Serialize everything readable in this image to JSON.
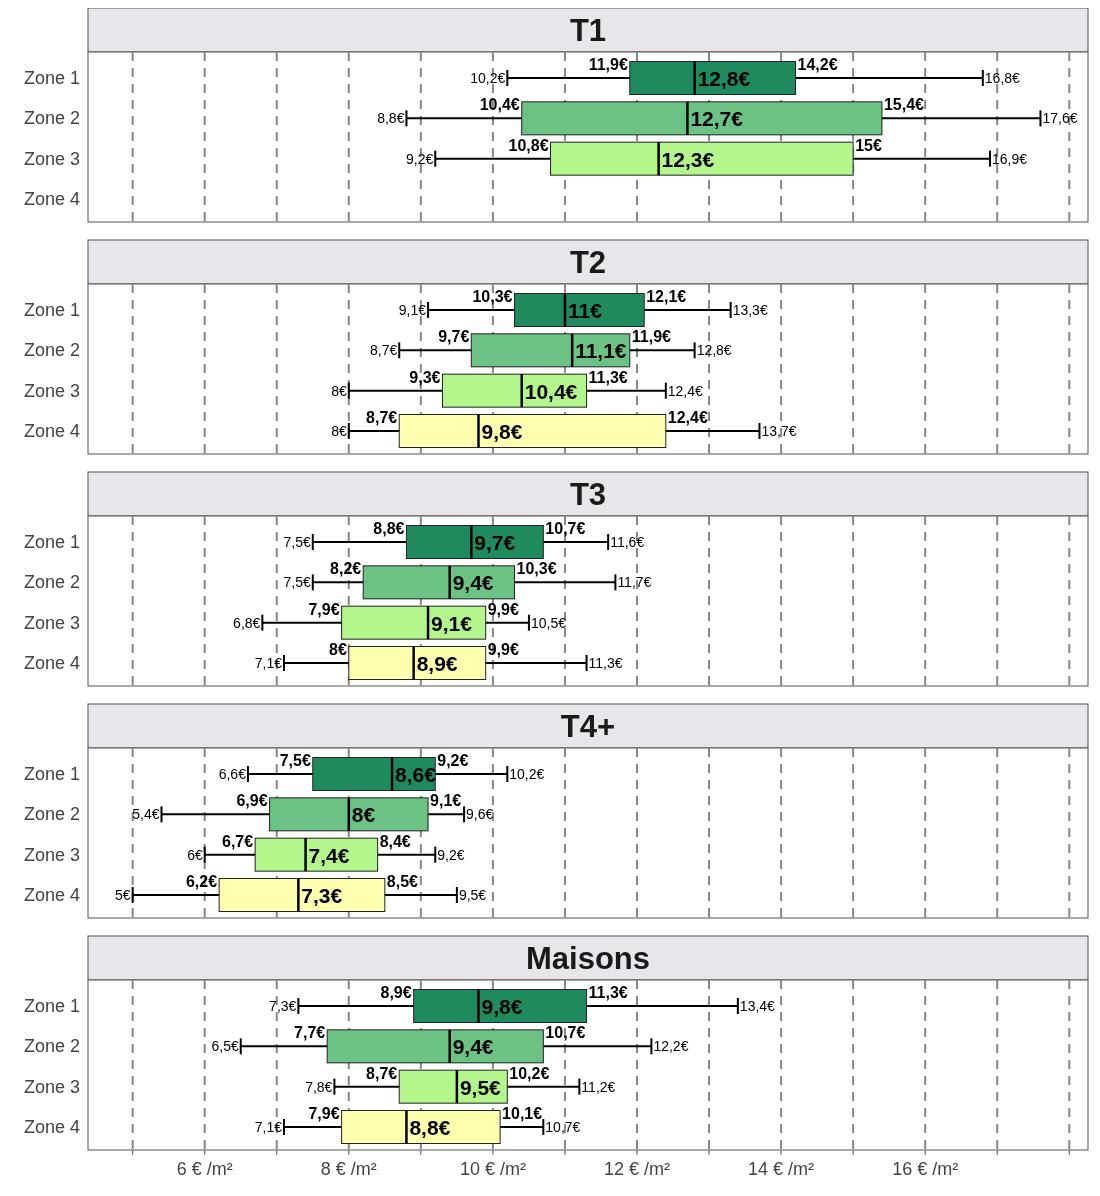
{
  "chart_data": [
    {
      "type": "box",
      "title": "T1",
      "orientation": "horizontal",
      "categories": [
        "Zone 1",
        "Zone 2",
        "Zone 3",
        "Zone 4"
      ],
      "colors": [
        "#1e8a5e",
        "#6cc184",
        "#b4f68c",
        null
      ],
      "boxes": [
        {
          "low": 10.2,
          "q1": 11.9,
          "median": 12.8,
          "q3": 14.2,
          "high": 16.8
        },
        {
          "low": 8.8,
          "q1": 10.4,
          "median": 12.7,
          "q3": 15.4,
          "high": 17.6
        },
        {
          "low": 9.2,
          "q1": 10.8,
          "median": 12.3,
          "q3": 15,
          "high": 16.9
        },
        null
      ],
      "value_labels": [
        [
          "10,2€",
          "11,9€",
          "12,8€",
          "14,2€",
          "16,8€"
        ],
        [
          "8,8€",
          "10,4€",
          "12,7€",
          "15,4€",
          "17,6€"
        ],
        [
          "9,2€",
          "10,8€",
          "12,3€",
          "15€",
          "16,9€"
        ],
        null
      ],
      "xlim": [
        4.38,
        18.26
      ],
      "xticks": [
        5,
        6,
        7,
        8,
        9,
        10,
        11,
        12,
        13,
        14,
        15,
        16,
        17,
        18
      ],
      "grid": "x",
      "tick_labels": "y"
    },
    {
      "type": "box",
      "title": "T2",
      "orientation": "horizontal",
      "categories": [
        "Zone 1",
        "Zone 2",
        "Zone 3",
        "Zone 4"
      ],
      "colors": [
        "#1e8a5e",
        "#6cc184",
        "#b4f68c",
        "#ffffb0"
      ],
      "boxes": [
        {
          "low": 9.1,
          "q1": 10.3,
          "median": 11,
          "q3": 12.1,
          "high": 13.3
        },
        {
          "low": 8.7,
          "q1": 9.7,
          "median": 11.1,
          "q3": 11.9,
          "high": 12.8
        },
        {
          "low": 8,
          "q1": 9.3,
          "median": 10.4,
          "q3": 11.3,
          "high": 12.4
        },
        {
          "low": 8,
          "q1": 8.7,
          "median": 9.8,
          "q3": 12.4,
          "high": 13.7
        }
      ],
      "value_labels": [
        [
          "9,1€",
          "10,3€",
          "11€",
          "12,1€",
          "13,3€"
        ],
        [
          "8,7€",
          "9,7€",
          "11,1€",
          "11,9€",
          "12,8€"
        ],
        [
          "8€",
          "9,3€",
          "10,4€",
          "11,3€",
          "12,4€"
        ],
        [
          "8€",
          "8,7€",
          "9,8€",
          "12,4€",
          "13,7€"
        ]
      ],
      "xlim": [
        4.38,
        18.26
      ],
      "xticks": [
        5,
        6,
        7,
        8,
        9,
        10,
        11,
        12,
        13,
        14,
        15,
        16,
        17,
        18
      ],
      "grid": "x",
      "tick_labels": "y"
    },
    {
      "type": "box",
      "title": "T3",
      "orientation": "horizontal",
      "categories": [
        "Zone 1",
        "Zone 2",
        "Zone 3",
        "Zone 4"
      ],
      "colors": [
        "#1e8a5e",
        "#6cc184",
        "#b4f68c",
        "#ffffb0"
      ],
      "boxes": [
        {
          "low": 7.5,
          "q1": 8.8,
          "median": 9.7,
          "q3": 10.7,
          "high": 11.6
        },
        {
          "low": 7.5,
          "q1": 8.2,
          "median": 9.4,
          "q3": 10.3,
          "high": 11.7
        },
        {
          "low": 6.8,
          "q1": 7.9,
          "median": 9.1,
          "q3": 9.9,
          "high": 10.5
        },
        {
          "low": 7.1,
          "q1": 8,
          "median": 8.9,
          "q3": 9.9,
          "high": 11.3
        }
      ],
      "value_labels": [
        [
          "7,5€",
          "8,8€",
          "9,7€",
          "10,7€",
          "11,6€"
        ],
        [
          "7,5€",
          "8,2€",
          "9,4€",
          "10,3€",
          "11,7€"
        ],
        [
          "6,8€",
          "7,9€",
          "9,1€",
          "9,9€",
          "10,5€"
        ],
        [
          "7,1€",
          "8€",
          "8,9€",
          "9,9€",
          "11,3€"
        ]
      ],
      "xlim": [
        4.38,
        18.26
      ],
      "xticks": [
        5,
        6,
        7,
        8,
        9,
        10,
        11,
        12,
        13,
        14,
        15,
        16,
        17,
        18
      ],
      "grid": "x",
      "tick_labels": "y"
    },
    {
      "type": "box",
      "title": "T4+",
      "orientation": "horizontal",
      "categories": [
        "Zone 1",
        "Zone 2",
        "Zone 3",
        "Zone 4"
      ],
      "colors": [
        "#1e8a5e",
        "#6cc184",
        "#b4f68c",
        "#ffffb0"
      ],
      "boxes": [
        {
          "low": 6.6,
          "q1": 7.5,
          "median": 8.6,
          "q3": 9.2,
          "high": 10.2
        },
        {
          "low": 5.4,
          "q1": 6.9,
          "median": 8,
          "q3": 9.1,
          "high": 9.6
        },
        {
          "low": 6,
          "q1": 6.7,
          "median": 7.4,
          "q3": 8.4,
          "high": 9.2
        },
        {
          "low": 5,
          "q1": 6.2,
          "median": 7.3,
          "q3": 8.5,
          "high": 9.5
        }
      ],
      "value_labels": [
        [
          "6,6€",
          "7,5€",
          "8,6€",
          "9,2€",
          "10,2€"
        ],
        [
          "5,4€",
          "6,9€",
          "8€",
          "9,1€",
          "9,6€"
        ],
        [
          "6€",
          "6,7€",
          "7,4€",
          "8,4€",
          "9,2€"
        ],
        [
          "5€",
          "6,2€",
          "7,3€",
          "8,5€",
          "9,5€"
        ]
      ],
      "xlim": [
        4.38,
        18.26
      ],
      "xticks": [
        5,
        6,
        7,
        8,
        9,
        10,
        11,
        12,
        13,
        14,
        15,
        16,
        17,
        18
      ],
      "grid": "x",
      "tick_labels": "y"
    },
    {
      "type": "box",
      "title": "Maisons",
      "orientation": "horizontal",
      "categories": [
        "Zone 1",
        "Zone 2",
        "Zone 3",
        "Zone 4"
      ],
      "colors": [
        "#1e8a5e",
        "#6cc184",
        "#b4f68c",
        "#ffffb0"
      ],
      "boxes": [
        {
          "low": 7.3,
          "q1": 8.9,
          "median": 9.8,
          "q3": 11.3,
          "high": 13.4
        },
        {
          "low": 6.5,
          "q1": 7.7,
          "median": 9.4,
          "q3": 10.7,
          "high": 12.2
        },
        {
          "low": 7.8,
          "q1": 8.7,
          "median": 9.5,
          "q3": 10.2,
          "high": 11.2
        },
        {
          "low": 7.1,
          "q1": 7.9,
          "median": 8.8,
          "q3": 10.1,
          "high": 10.7
        }
      ],
      "value_labels": [
        [
          "7,3€",
          "8,9€",
          "9,8€",
          "11,3€",
          "13,4€"
        ],
        [
          "6,5€",
          "7,7€",
          "9,4€",
          "10,7€",
          "12,2€"
        ],
        [
          "7,8€",
          "8,7€",
          "9,5€",
          "10,2€",
          "11,2€"
        ],
        [
          "7,1€",
          "7,9€",
          "8,8€",
          "10,1€",
          "10,7€"
        ]
      ],
      "xlim": [
        4.38,
        18.26
      ],
      "xticks": [
        {
          "value": 5,
          "label": null
        },
        {
          "value": 6,
          "label": "6 € /m²"
        },
        {
          "value": 7,
          "label": null
        },
        {
          "value": 8,
          "label": "8 € /m²"
        },
        {
          "value": 9,
          "label": null
        },
        {
          "value": 10,
          "label": "10 € /m²"
        },
        {
          "value": 11,
          "label": null
        },
        {
          "value": 12,
          "label": "12 € /m²"
        },
        {
          "value": 13,
          "label": null
        },
        {
          "value": 14,
          "label": "14 € /m²"
        },
        {
          "value": 15,
          "label": null
        },
        {
          "value": 16,
          "label": "16 € /m²"
        },
        {
          "value": 17,
          "label": null
        },
        {
          "value": 18,
          "label": null
        }
      ],
      "grid": "x"
    }
  ]
}
